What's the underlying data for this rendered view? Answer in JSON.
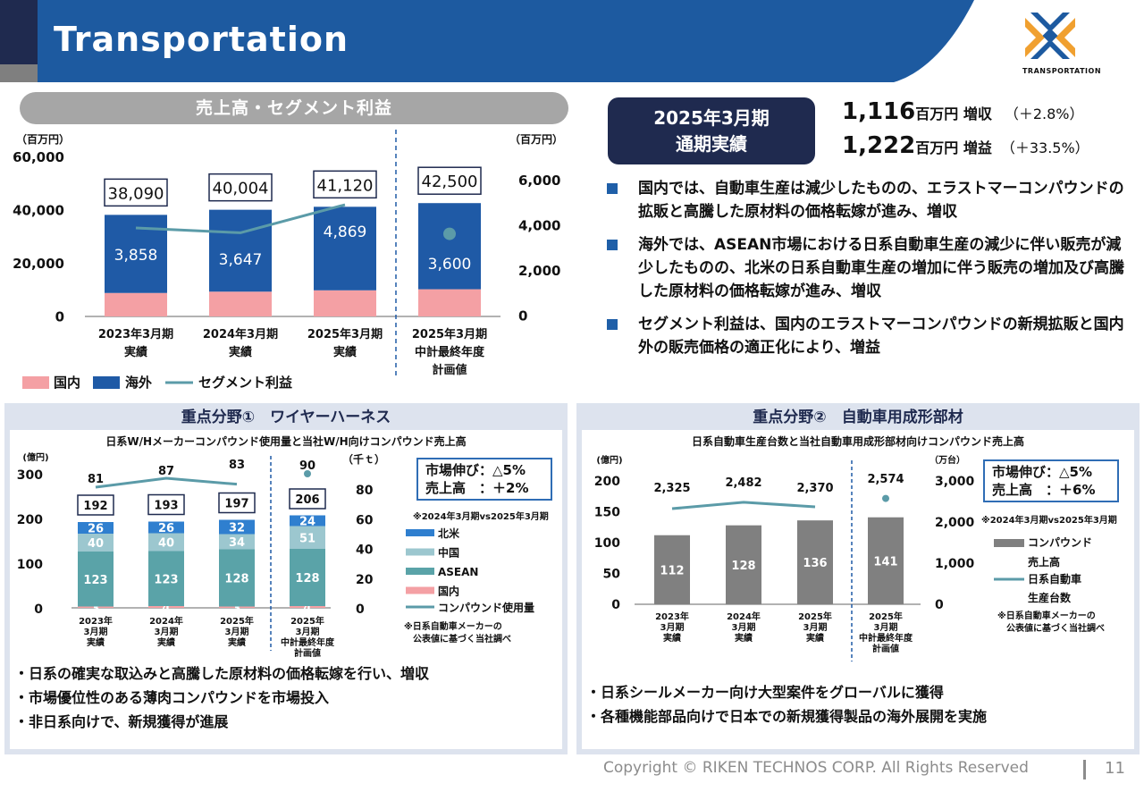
{
  "header": {
    "title": "Transportation",
    "logo_text": "TRANSPORTATION"
  },
  "section_main": {
    "pill_label": "売上高・セグメント利益"
  },
  "summary": {
    "period_line1": "2025年3月期",
    "period_line2": "通期実績",
    "sales_value": "1,116",
    "sales_unit": "百万円 増収",
    "sales_change": "（＋2.8%）",
    "profit_value": "1,222",
    "profit_unit": "百万円 増益",
    "profit_change": "（＋33.5%）",
    "bullets": [
      "国内では、自動車生産は減少したものの、エラストマーコンパウンドの拡販と高騰した原材料の価格転嫁が進み、増収",
      "海外では、ASEAN市場における日系自動車生産の減少に伴い販売が減少したものの、北米の日系自動車生産の増加に伴う販売の増加及び高騰した原材料の価格転嫁が進み、増収",
      "セグメント利益は、国内のエラストマーコンパウンドの新規拡販と国内外の販売価格の適正化により、増益"
    ]
  },
  "panel1": {
    "title": "重点分野①　ワイヤーハーネス",
    "subtitle": "日系W/Hメーカーコンパウンド使用量と当社W/H向けコンパウンド売上高",
    "note_line1": "市場伸び：△5%",
    "note_line2": "売上高　：＋2%",
    "note_small": "※2024年3月期vs2025年3月期",
    "footnote_line1": "※日系自動車メーカーの",
    "footnote_line2": "公表値に基づく当社調べ",
    "bullets": [
      "日系の確実な取込みと高騰した原材料の価格転嫁を行い、増収",
      "市場優位性のある薄肉コンパウンドを市場投入",
      "非日系向けで、新規獲得が進展"
    ]
  },
  "panel2": {
    "title": "重点分野②　自動車用成形部材",
    "subtitle": "日系自動車生産台数と当社自動車用成形部材向けコンパウンド売上高",
    "note_line1": "市場伸び：△5%",
    "note_line2": "売上高　：＋6%",
    "note_small": "※2024年3月期vs2025年3月期",
    "footnote_line1": "※日系自動車メーカーの",
    "footnote_line2": "公表値に基づく当社調べ",
    "bullets": [
      "日系シールメーカー向け大型案件をグローバルに獲得",
      "各種機能部品向けで日本での新規獲得製品の海外展開を実施"
    ]
  },
  "footer": {
    "copyright": "Copyright © RIKEN TECHNOS CORP. All Rights Reserved",
    "page": "11"
  },
  "colors": {
    "navy": "#1f2a4f",
    "blue": "#1f5fa8",
    "header_blue": "#1d5aa0",
    "domestic": "#f4a0a4",
    "overseas": "#1f5aa6",
    "line": "#5b9ba8",
    "gray_bar": "#808080",
    "hokubei": "#2f7fcf",
    "china": "#9cc7cf",
    "asean": "#5aa3a8"
  },
  "chart_data": [
    {
      "id": "main",
      "type": "bar",
      "categories": [
        [
          "2023年3月期",
          "実績"
        ],
        [
          "2024年3月期",
          "実績"
        ],
        [
          "2025年3月期",
          "実績"
        ],
        [
          "2025年3月期",
          "中計最終年度",
          "計画値"
        ]
      ],
      "left_unit": "（百万円）",
      "right_unit": "（百万円）",
      "left_ticks": [
        "60,000",
        "40,000",
        "20,000",
        "0"
      ],
      "right_ticks": [
        "6,000",
        "4,000",
        "2,000",
        "0"
      ],
      "ylim_left": [
        0,
        60000
      ],
      "ylim_right": [
        0,
        6000
      ],
      "totals": [
        38090,
        40004,
        41120,
        42500
      ],
      "total_labels": [
        "38,090",
        "40,004",
        "41,120",
        "42,500"
      ],
      "series": [
        {
          "name": "国内",
          "values": [
            8800,
            9300,
            9800,
            10200
          ],
          "color": "#f4a0a4"
        },
        {
          "name": "海外",
          "values": [
            29290,
            30704,
            31320,
            32300
          ],
          "color": "#1f5aa6"
        }
      ],
      "line": {
        "name": "セグメント利益",
        "values": [
          3858,
          3647,
          4869,
          3600
        ],
        "labels": [
          "3,858",
          "3,647",
          "4,869",
          "3,600"
        ],
        "color": "#5b9ba8",
        "plan_is_point": true
      }
    },
    {
      "id": "wire_harness",
      "type": "bar",
      "categories": [
        [
          "2023年",
          "3月期",
          "実績"
        ],
        [
          "2024年",
          "3月期",
          "実績"
        ],
        [
          "2025年",
          "3月期",
          "実績"
        ],
        [
          "2025年",
          "3月期",
          "中計最終年度",
          "計画値"
        ]
      ],
      "left_unit": "(億円)",
      "right_unit": "（千ｔ）",
      "left_ticks": [
        "300",
        "200",
        "100",
        "0"
      ],
      "right_ticks": [
        "80",
        "60",
        "40",
        "20",
        "0"
      ],
      "ylim_left": [
        0,
        300
      ],
      "ylim_right": [
        0,
        90
      ],
      "totals": [
        192,
        193,
        197,
        206
      ],
      "total_labels": [
        "192",
        "193",
        "197",
        "206"
      ],
      "series": [
        {
          "name": "国内",
          "values": [
            3,
            4,
            3,
            4
          ],
          "labels": [
            "3",
            "4",
            "3",
            "4"
          ],
          "color": "#f4a0a4"
        },
        {
          "name": "ASEAN",
          "values": [
            123,
            123,
            128,
            128
          ],
          "labels": [
            "123",
            "123",
            "128",
            "128"
          ],
          "color": "#5aa3a8"
        },
        {
          "name": "中国",
          "values": [
            40,
            40,
            34,
            51
          ],
          "labels": [
            "40",
            "40",
            "34",
            "51"
          ],
          "color": "#9cc7cf"
        },
        {
          "name": "北米",
          "values": [
            26,
            26,
            32,
            24
          ],
          "labels": [
            "26",
            "26",
            "32",
            "24"
          ],
          "color": "#2f7fcf"
        }
      ],
      "legend_order": [
        "北米",
        "中国",
        "ASEAN",
        "国内"
      ],
      "line": {
        "name": "コンパウンド使用量",
        "values": [
          81,
          87,
          83,
          90
        ],
        "labels": [
          "81",
          "87",
          "83",
          "90"
        ],
        "color": "#5b9ba8",
        "plan_is_point": true
      }
    },
    {
      "id": "molded",
      "type": "bar",
      "categories": [
        [
          "2023年",
          "3月期",
          "実績"
        ],
        [
          "2024年",
          "3月期",
          "実績"
        ],
        [
          "2025年",
          "3月期",
          "実績"
        ],
        [
          "2025年",
          "3月期",
          "中計最終年度",
          "計画値"
        ]
      ],
      "left_unit": "(億円)",
      "right_unit": "（万台）",
      "left_ticks": [
        "200",
        "150",
        "100",
        "50",
        "0"
      ],
      "right_ticks": [
        "3,000",
        "2,000",
        "1,000",
        "0"
      ],
      "ylim_left": [
        0,
        200
      ],
      "ylim_right": [
        0,
        3000
      ],
      "series": [
        {
          "name": "コンパウンド売上高",
          "values": [
            112,
            128,
            136,
            141
          ],
          "labels": [
            "112",
            "128",
            "136",
            "141"
          ],
          "color": "#808080"
        }
      ],
      "legend": [
        [
          "コンパウンド",
          "売上高"
        ],
        [
          "日系自動車",
          "生産台数"
        ]
      ],
      "line": {
        "name": "日系自動車生産台数",
        "values": [
          2325,
          2482,
          2370,
          2574
        ],
        "labels": [
          "2,325",
          "2,482",
          "2,370",
          "2,574"
        ],
        "color": "#5b9ba8",
        "plan_is_point": true
      }
    }
  ]
}
